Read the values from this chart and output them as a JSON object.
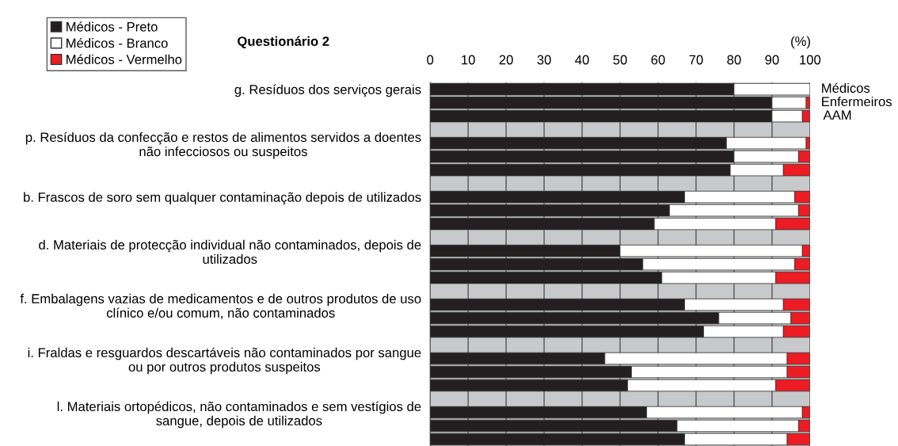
{
  "chart_data": {
    "type": "bar",
    "orientation": "horizontal",
    "stacked": true,
    "title": "Questionário 2",
    "xlabel": "(%)",
    "categories": [
      "g. Resíduos dos serviços gerais",
      null,
      null,
      null,
      "p. Resíduos da confecção e restos de alimentos servidos a doentes\nnão infecciosos ou suspeitos",
      null,
      null,
      null,
      "b. Frascos de soro sem qualquer contaminação depois de utilizados",
      null,
      null,
      null,
      "d. Materiais de protecção individual não contaminados, depois de\nutilizados",
      null,
      null,
      null,
      "f. Embalagens vazias de medicamentos e de outros produtos de uso\nclínico e/ou comum, não contaminados",
      null,
      null,
      null,
      "i. Fraldas e resguardos descartáveis não contaminados por sangue\nou por outros produtos suspeitos",
      null,
      null,
      null,
      "l. Materiais ortopédicos, não contaminados e sem vestígios de\nsangue, depois de utilizados",
      null,
      null
    ],
    "series": [
      {
        "name": "Médicos - Preto",
        "color": "#231f20",
        "values": [
          80,
          90,
          90,
          null,
          78,
          80,
          79,
          null,
          67,
          63,
          59,
          null,
          50,
          56,
          61,
          null,
          67,
          76,
          72,
          null,
          46,
          53,
          52,
          null,
          57,
          65,
          67
        ]
      },
      {
        "name": "Médicos - Branco",
        "color": "#ffffff",
        "values": [
          20,
          9,
          8,
          null,
          21,
          17,
          14,
          null,
          29,
          34,
          32,
          null,
          48,
          40,
          30,
          null,
          26,
          19,
          21,
          null,
          48,
          41,
          39,
          null,
          41,
          32,
          27
        ]
      },
      {
        "name": "Médicos - Vermelho",
        "color": "#ed1c24",
        "values": [
          0,
          1,
          2,
          null,
          1,
          3,
          7,
          null,
          4,
          3,
          9,
          null,
          2,
          4,
          9,
          null,
          7,
          5,
          7,
          null,
          6,
          6,
          9,
          null,
          2,
          3,
          6
        ]
      }
    ],
    "annotations": [
      "Médicos",
      "Enfermeiros",
      "AAM"
    ],
    "xlim": [
      0,
      100
    ],
    "xticks": [
      0,
      10,
      20,
      30,
      40,
      50,
      60,
      70,
      80,
      90,
      100
    ],
    "grid": "x",
    "legend": "top left"
  }
}
